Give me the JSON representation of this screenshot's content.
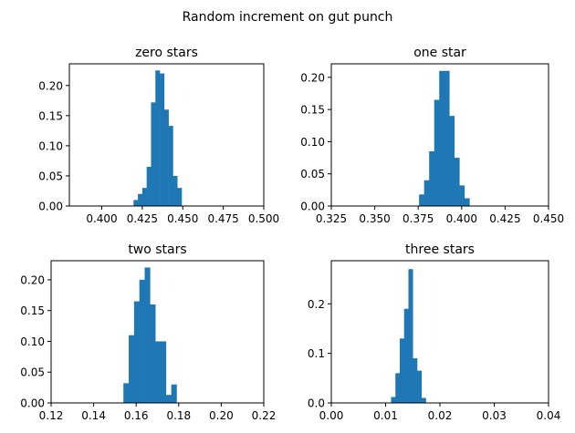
{
  "figure_title": "Random increment on gut punch",
  "colors": {
    "bar": "#1f77b4",
    "axis": "#000000",
    "background": "#ffffff"
  },
  "chart_data": [
    {
      "type": "bar",
      "title": "zero stars",
      "xlabel": "",
      "ylabel": "",
      "xlim": [
        0.38,
        0.5
      ],
      "ylim": [
        0,
        0.236
      ],
      "grid": false,
      "xticks": [
        0.4,
        0.425,
        0.45,
        0.475,
        0.5
      ],
      "xtick_labels": [
        "0.400",
        "0.425",
        "0.450",
        "0.475",
        "0.500"
      ],
      "yticks": [
        0,
        0.05,
        0.1,
        0.15,
        0.2
      ],
      "ytick_labels": [
        "0.00",
        "0.05",
        "0.10",
        "0.15",
        "0.20"
      ],
      "bins": [
        {
          "x0": 0.4196,
          "x1": 0.4223,
          "y": 0.01
        },
        {
          "x0": 0.4223,
          "x1": 0.425,
          "y": 0.02
        },
        {
          "x0": 0.425,
          "x1": 0.4277,
          "y": 0.03
        },
        {
          "x0": 0.4277,
          "x1": 0.4304,
          "y": 0.065
        },
        {
          "x0": 0.4304,
          "x1": 0.4331,
          "y": 0.172
        },
        {
          "x0": 0.4331,
          "x1": 0.4358,
          "y": 0.225
        },
        {
          "x0": 0.4358,
          "x1": 0.4385,
          "y": 0.22
        },
        {
          "x0": 0.4385,
          "x1": 0.4412,
          "y": 0.16
        },
        {
          "x0": 0.4412,
          "x1": 0.4439,
          "y": 0.133
        },
        {
          "x0": 0.4439,
          "x1": 0.4466,
          "y": 0.05
        },
        {
          "x0": 0.4466,
          "x1": 0.4493,
          "y": 0.03
        }
      ]
    },
    {
      "type": "bar",
      "title": "one star",
      "xlabel": "",
      "ylabel": "",
      "xlim": [
        0.325,
        0.45
      ],
      "ylim": [
        0,
        0.221
      ],
      "grid": false,
      "xticks": [
        0.325,
        0.35,
        0.375,
        0.4,
        0.425,
        0.45
      ],
      "xtick_labels": [
        "0.325",
        "0.350",
        "0.375",
        "0.400",
        "0.425",
        "0.450"
      ],
      "yticks": [
        0,
        0.05,
        0.1,
        0.15,
        0.2
      ],
      "ytick_labels": [
        "0.00",
        "0.05",
        "0.10",
        "0.15",
        "0.20"
      ],
      "bins": [
        {
          "x0": 0.3755,
          "x1": 0.3784,
          "y": 0.018
        },
        {
          "x0": 0.3784,
          "x1": 0.3813,
          "y": 0.04
        },
        {
          "x0": 0.3813,
          "x1": 0.3842,
          "y": 0.085
        },
        {
          "x0": 0.3842,
          "x1": 0.3871,
          "y": 0.165
        },
        {
          "x0": 0.3871,
          "x1": 0.39,
          "y": 0.21
        },
        {
          "x0": 0.39,
          "x1": 0.3929,
          "y": 0.21
        },
        {
          "x0": 0.3929,
          "x1": 0.3958,
          "y": 0.14
        },
        {
          "x0": 0.3958,
          "x1": 0.3987,
          "y": 0.075
        },
        {
          "x0": 0.3987,
          "x1": 0.4016,
          "y": 0.032
        },
        {
          "x0": 0.4016,
          "x1": 0.4045,
          "y": 0.012
        }
      ]
    },
    {
      "type": "bar",
      "title": "two stars",
      "xlabel": "",
      "ylabel": "",
      "xlim": [
        0.12,
        0.22
      ],
      "ylim": [
        0,
        0.231
      ],
      "grid": false,
      "xticks": [
        0.12,
        0.14,
        0.16,
        0.18,
        0.2,
        0.22
      ],
      "xtick_labels": [
        "0.12",
        "0.14",
        "0.16",
        "0.18",
        "0.20",
        "0.22"
      ],
      "yticks": [
        0,
        0.05,
        0.1,
        0.15,
        0.2
      ],
      "ytick_labels": [
        "0.00",
        "0.05",
        "0.10",
        "0.15",
        "0.20"
      ],
      "bins": [
        {
          "x0": 0.154,
          "x1": 0.1565,
          "y": 0.032
        },
        {
          "x0": 0.1565,
          "x1": 0.159,
          "y": 0.11
        },
        {
          "x0": 0.159,
          "x1": 0.1615,
          "y": 0.165
        },
        {
          "x0": 0.1615,
          "x1": 0.164,
          "y": 0.2
        },
        {
          "x0": 0.164,
          "x1": 0.1665,
          "y": 0.22
        },
        {
          "x0": 0.1665,
          "x1": 0.169,
          "y": 0.16
        },
        {
          "x0": 0.169,
          "x1": 0.1715,
          "y": 0.1
        },
        {
          "x0": 0.1715,
          "x1": 0.174,
          "y": 0.1
        },
        {
          "x0": 0.174,
          "x1": 0.1765,
          "y": 0.013
        },
        {
          "x0": 0.1765,
          "x1": 0.179,
          "y": 0.03
        }
      ]
    },
    {
      "type": "bar",
      "title": "three stars",
      "xlabel": "",
      "ylabel": "",
      "xlim": [
        0,
        0.04
      ],
      "ylim": [
        0,
        0.287
      ],
      "grid": false,
      "xticks": [
        0,
        0.01,
        0.02,
        0.03,
        0.04
      ],
      "xtick_labels": [
        "0.00",
        "0.01",
        "0.02",
        "0.03",
        "0.04"
      ],
      "yticks": [
        0,
        0.1,
        0.2
      ],
      "ytick_labels": [
        "0.0",
        "0.1",
        "0.2"
      ],
      "bins": [
        {
          "x0": 0.011,
          "x1": 0.0118,
          "y": 0.012
        },
        {
          "x0": 0.0118,
          "x1": 0.0126,
          "y": 0.06
        },
        {
          "x0": 0.0126,
          "x1": 0.0134,
          "y": 0.13
        },
        {
          "x0": 0.0134,
          "x1": 0.0142,
          "y": 0.19
        },
        {
          "x0": 0.0142,
          "x1": 0.015,
          "y": 0.27
        },
        {
          "x0": 0.015,
          "x1": 0.0158,
          "y": 0.09
        },
        {
          "x0": 0.0158,
          "x1": 0.0166,
          "y": 0.065
        },
        {
          "x0": 0.0166,
          "x1": 0.0174,
          "y": 0.01
        }
      ]
    }
  ]
}
